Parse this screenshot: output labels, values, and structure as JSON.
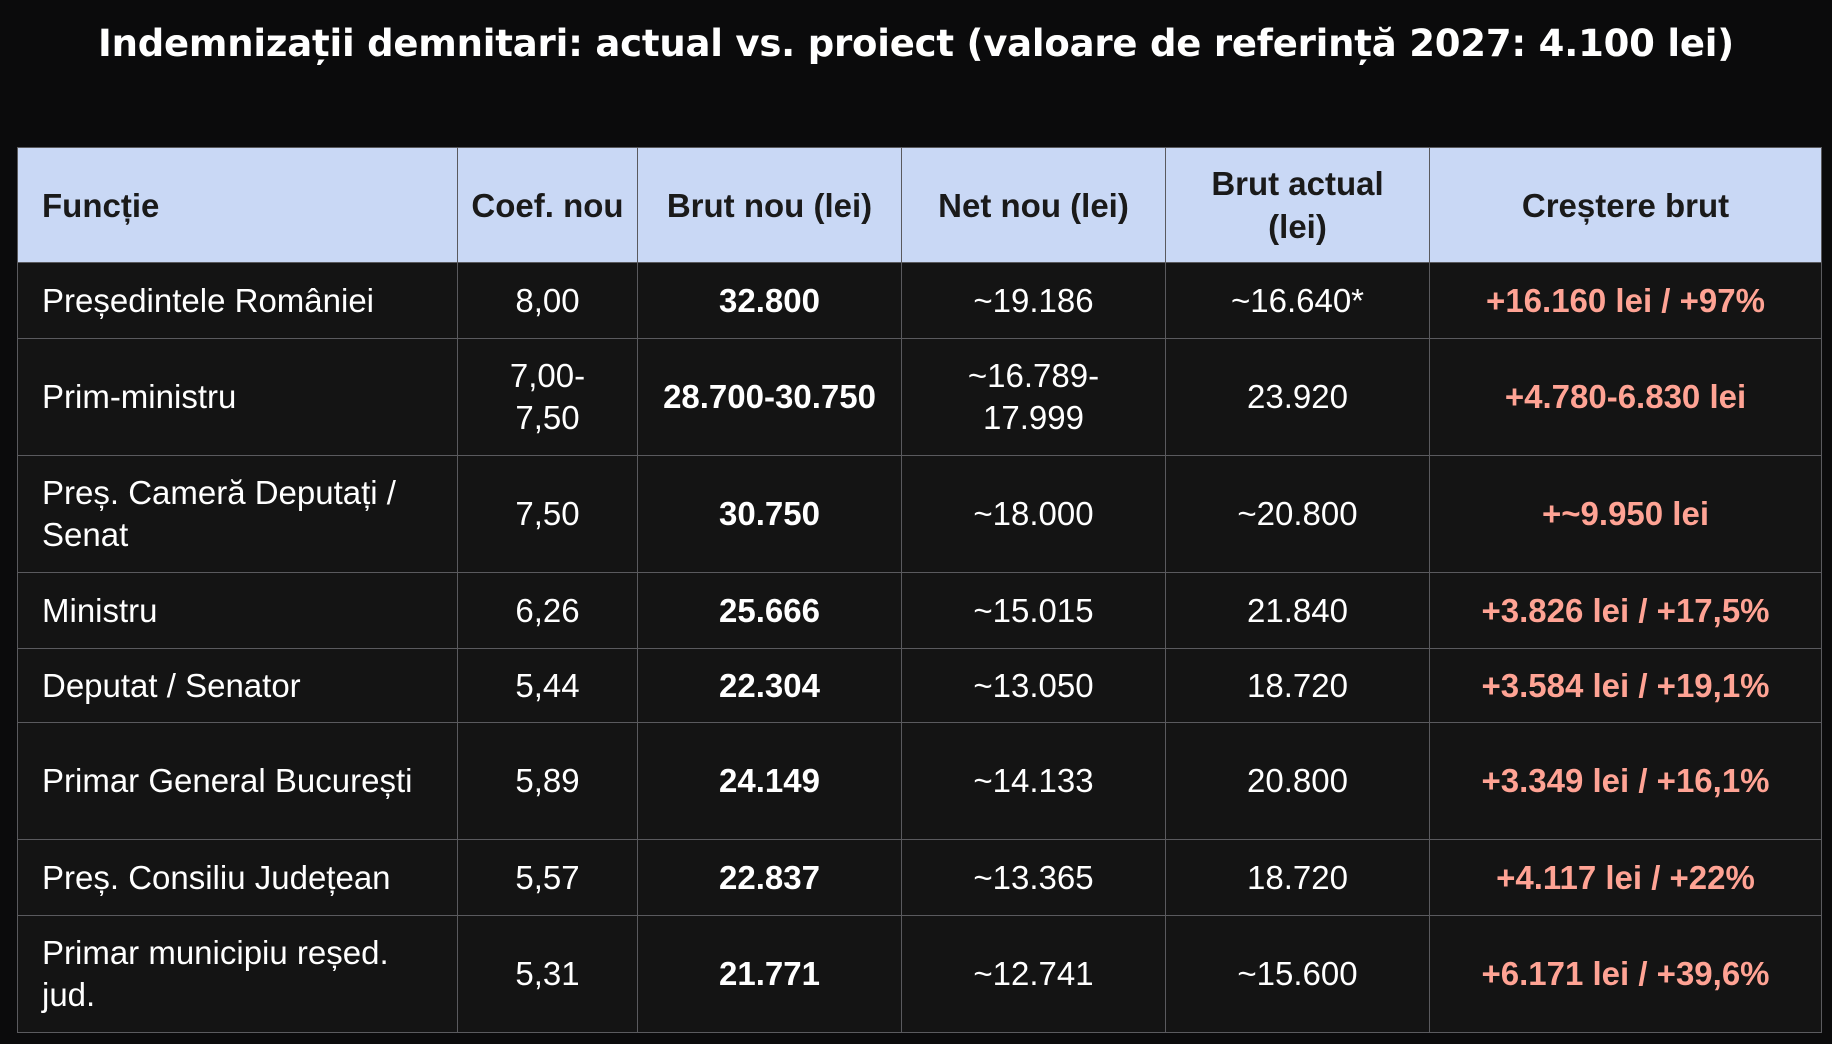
{
  "title": "Indemnizații demnitari: actual vs. proiect (valoare de referință 2027: 4.100 lei)",
  "chart_data": {
    "type": "table",
    "title": "Indemnizații demnitari: actual vs. proiect (valoare de referință 2027: 4.100 lei)",
    "columns": [
      "Funcție",
      "Coef. nou",
      "Brut nou (lei)",
      "Net nou (lei)",
      "Brut actual (lei)",
      "Creștere brut"
    ],
    "rows": [
      {
        "functie": "Președintele României",
        "coef": "8,00",
        "brut_nou": "32.800",
        "net_nou": "~19.186",
        "brut_actual": "~16.640*",
        "crestere": "+16.160 lei / +97%"
      },
      {
        "functie": "Prim-ministru",
        "coef": "7,00-7,50",
        "brut_nou": "28.700-30.750",
        "net_nou": "~16.789-17.999",
        "brut_actual": "23.920",
        "crestere": "+4.780-6.830 lei"
      },
      {
        "functie": "Preș. Cameră Deputați / Senat",
        "coef": "7,50",
        "brut_nou": "30.750",
        "net_nou": "~18.000",
        "brut_actual": "~20.800",
        "crestere": "+~9.950 lei"
      },
      {
        "functie": "Ministru",
        "coef": "6,26",
        "brut_nou": "25.666",
        "net_nou": "~15.015",
        "brut_actual": "21.840",
        "crestere": "+3.826 lei / +17,5%"
      },
      {
        "functie": "Deputat / Senator",
        "coef": "5,44",
        "brut_nou": "22.304",
        "net_nou": "~13.050",
        "brut_actual": "18.720",
        "crestere": "+3.584 lei / +19,1%"
      },
      {
        "functie": "Primar General București",
        "coef": "5,89",
        "brut_nou": "24.149",
        "net_nou": "~14.133",
        "brut_actual": "20.800",
        "crestere": "+3.349 lei / +16,1%"
      },
      {
        "functie": "Preș. Consiliu Județean",
        "coef": "5,57",
        "brut_nou": "22.837",
        "net_nou": "~13.365",
        "brut_actual": "18.720",
        "crestere": "+4.117 lei / +22%"
      },
      {
        "functie": "Primar municipiu reșed. jud.",
        "coef": "5,31",
        "brut_nou": "21.771",
        "net_nou": "~12.741",
        "brut_actual": "~15.600",
        "crestere": "+6.171 lei / +39,6%"
      }
    ],
    "colors": {
      "header_bg": "#c9d8f5",
      "header_text": "#1a1a1a",
      "body_bg": "#141414",
      "body_text": "#ffffff",
      "growth_text": "#ffa394",
      "page_bg": "#0b0b0c",
      "border": "#5a5a5e"
    }
  }
}
